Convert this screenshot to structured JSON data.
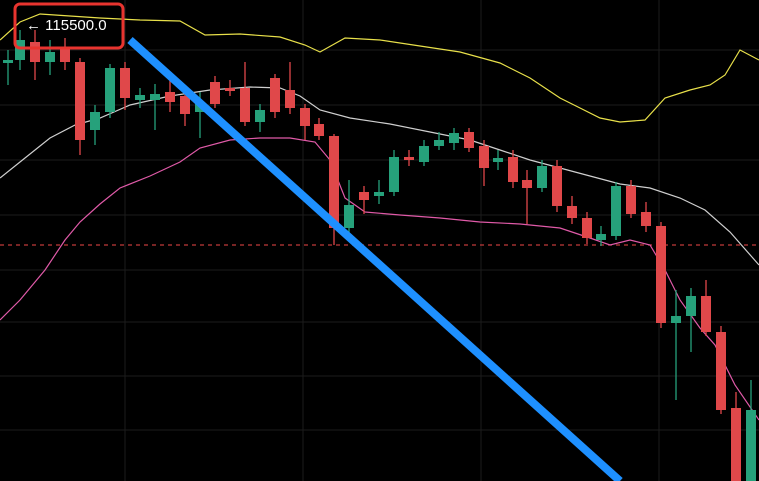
{
  "price_label": "← 115500.0"
}
